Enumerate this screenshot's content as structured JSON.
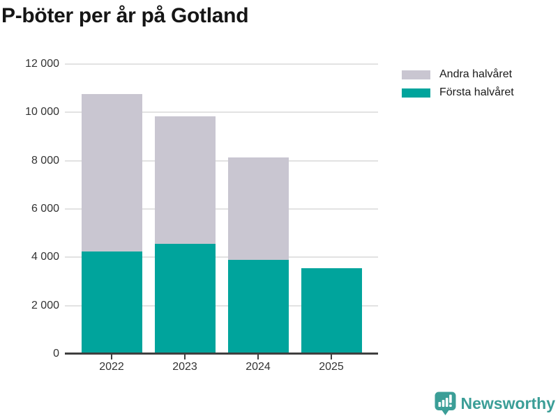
{
  "title": "P-böter per år på Gotland",
  "legend": [
    {
      "label": "Andra halvåret",
      "color": "#c9c6d1"
    },
    {
      "label": "Första halvåret",
      "color": "#00a49c"
    }
  ],
  "chart_data": {
    "type": "bar",
    "stacked": true,
    "title": "P-böter per år på Gotland",
    "xlabel": "",
    "ylabel": "",
    "categories": [
      "2022",
      "2023",
      "2024",
      "2025"
    ],
    "series": [
      {
        "name": "Första halvåret",
        "color": "#00a49c",
        "values": [
          4250,
          4550,
          3900,
          3560
        ]
      },
      {
        "name": "Andra halvåret",
        "color": "#c9c6d1",
        "values": [
          6500,
          5300,
          4230,
          0
        ]
      }
    ],
    "totals": [
      10750,
      9850,
      8130,
      3560
    ],
    "ylim": [
      0,
      12000
    ],
    "yticks": [
      0,
      2000,
      4000,
      6000,
      8000,
      10000,
      12000
    ],
    "ytick_labels": [
      "0",
      "2 000",
      "4 000",
      "6 000",
      "8 000",
      "10 000",
      "12 000"
    ],
    "grid": "horizontal",
    "legend_position": "top-right"
  },
  "branding": {
    "name": "Newsworthy",
    "icon": "bar-chart-bubble-icon",
    "color": "#3b9e97"
  }
}
